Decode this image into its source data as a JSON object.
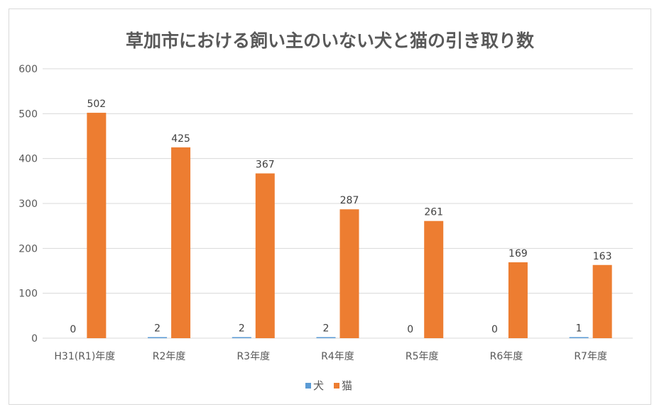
{
  "chart_data": {
    "type": "bar",
    "title": "草加市における飼い主のいない犬と猫の引き取り数",
    "xlabel": "",
    "ylabel": "",
    "categories": [
      "H31(R1)年度",
      "R2年度",
      "R3年度",
      "R4年度",
      "R5年度",
      "R6年度",
      "R7年度"
    ],
    "series": [
      {
        "name": "犬",
        "values": [
          0,
          2,
          2,
          2,
          0,
          0,
          1
        ],
        "color": "#5b9bd5"
      },
      {
        "name": "猫",
        "values": [
          502,
          425,
          367,
          287,
          261,
          169,
          163
        ],
        "color": "#ed7d31"
      }
    ],
    "ylim": [
      0,
      600
    ],
    "yticks": [
      0,
      100,
      200,
      300,
      400,
      500,
      600
    ],
    "grid": true,
    "gridColor": "#d9d9d9",
    "legend_position": "bottom",
    "data_labels": true
  }
}
